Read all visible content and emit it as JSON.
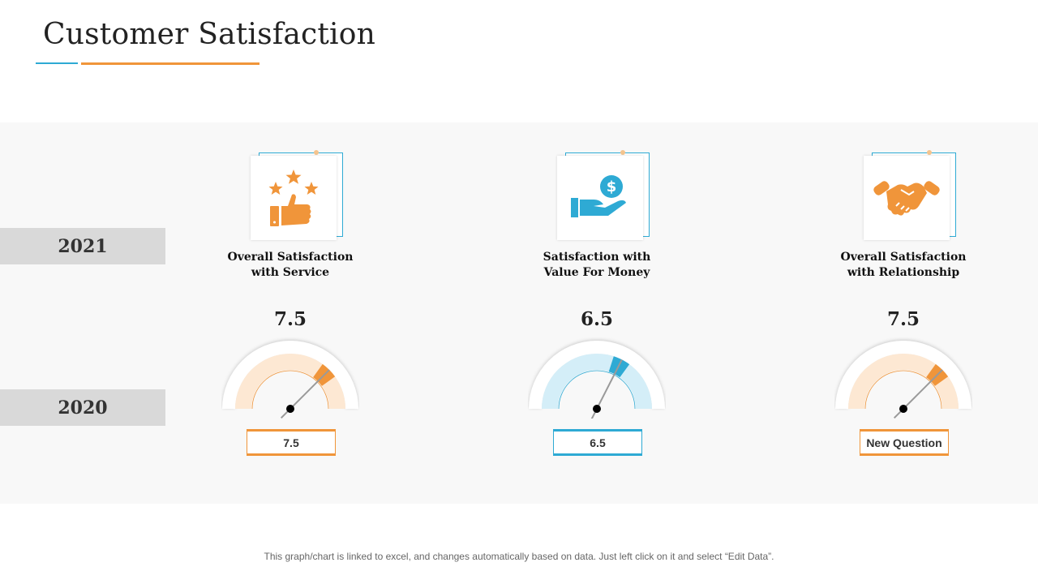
{
  "title": "Customer Satisfaction",
  "years": {
    "top": "2021",
    "bottom": "2020"
  },
  "colors": {
    "orange": "#f0953a",
    "blue": "#2eaad4"
  },
  "metrics": [
    {
      "label_line1": "Overall Satisfaction",
      "label_line2": "with Service",
      "icon": "thumbs-up-stars-icon",
      "value_2021": "7.5",
      "value_2020": "7.5",
      "level_fraction": 0.75,
      "accent": "orange"
    },
    {
      "label_line1": "Satisfaction with",
      "label_line2": "Value For Money",
      "icon": "hand-dollar-icon",
      "value_2021": "6.5",
      "value_2020": "6.5",
      "level_fraction": 0.65,
      "accent": "blue"
    },
    {
      "label_line1": "Overall Satisfaction",
      "label_line2": "with Relationship",
      "icon": "handshake-icon",
      "value_2021": "7.5",
      "value_2020": "New Question",
      "level_fraction": 0.75,
      "accent": "orange"
    }
  ],
  "footer": "This graph/chart is linked to excel, and changes automatically based on data. Just left click on it and select “Edit Data”."
}
